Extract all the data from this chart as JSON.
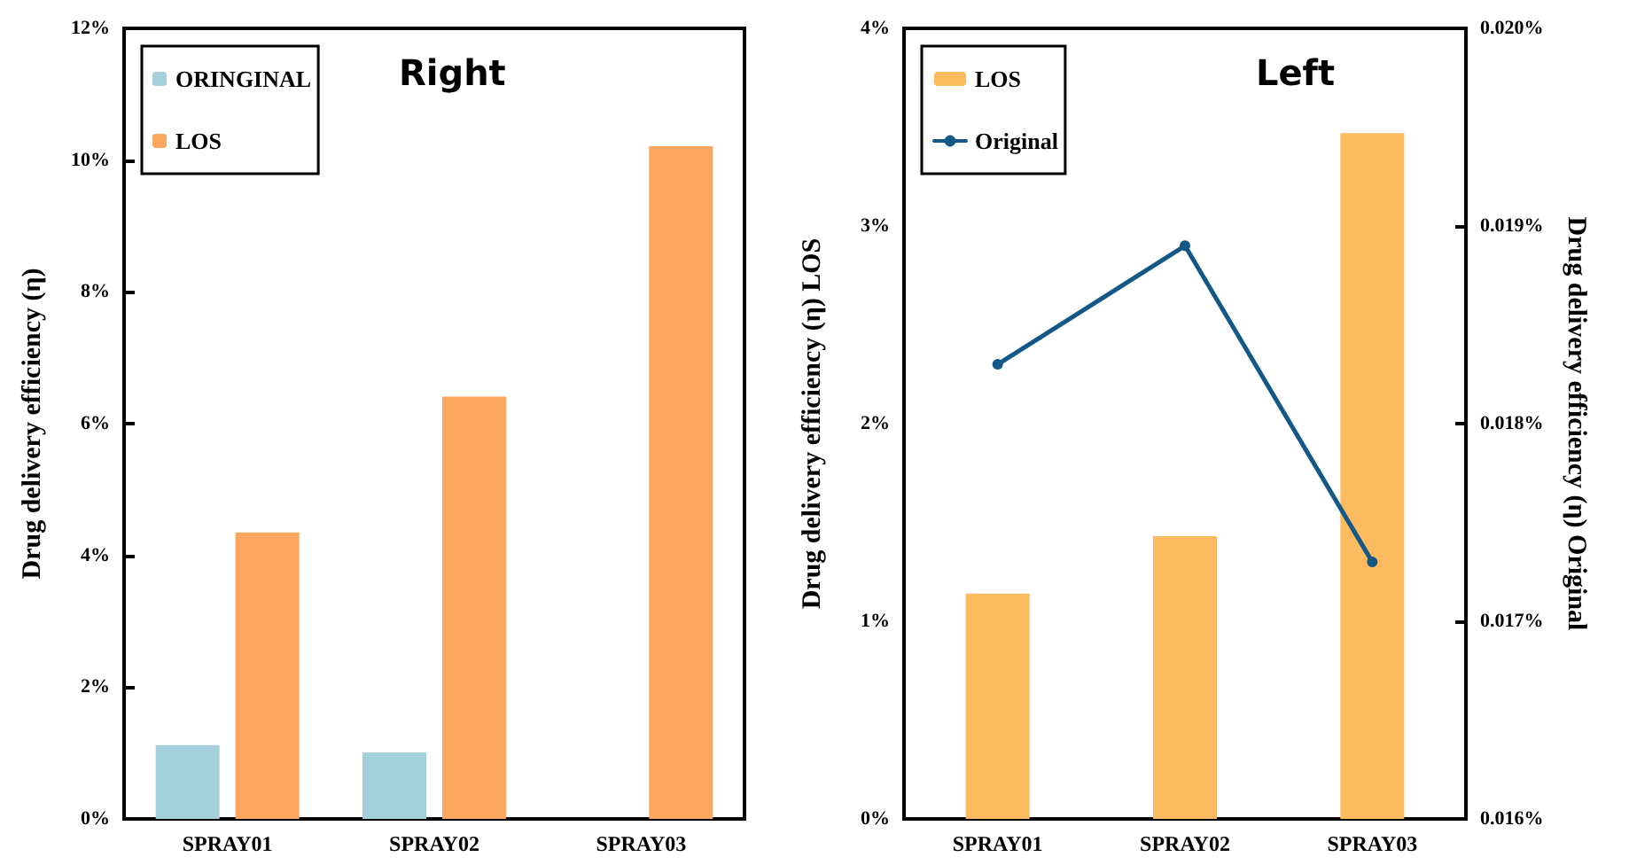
{
  "chart_data": [
    {
      "type": "bar",
      "title": "Right",
      "ylabel": "Drug delivery efficiency (η)",
      "categories": [
        "SPRAY01",
        "SPRAY02",
        "SPRAY03"
      ],
      "series": [
        {
          "name": "ORINGINAL",
          "color": "#a3d0da",
          "values": [
            1.12,
            1.01,
            null
          ]
        },
        {
          "name": "LOS",
          "color": "#fda65f",
          "values": [
            4.35,
            6.41,
            10.21
          ]
        }
      ],
      "ylim": [
        0,
        12
      ],
      "yticks": [
        {
          "value": 0,
          "label": "0%"
        },
        {
          "value": 2,
          "label": "2%"
        },
        {
          "value": 4,
          "label": "4%"
        },
        {
          "value": 6,
          "label": "6%"
        },
        {
          "value": 8,
          "label": "8%"
        },
        {
          "value": 10,
          "label": "10%"
        },
        {
          "value": 12,
          "label": "12%"
        }
      ],
      "grid": false,
      "legend": "top left"
    },
    {
      "type": "bar",
      "title": "Left",
      "ylabel": "Drug delivery efficiency (η) LOS",
      "y2label": "Drug delivery efficiency (η) Original",
      "categories": [
        "SPRAY01",
        "SPRAY02",
        "SPRAY03"
      ],
      "series": [
        {
          "name": "LOS",
          "color": "#fdbb5f",
          "values": [
            1.14,
            1.43,
            3.47
          ]
        },
        {
          "name": "Original",
          "type": "line",
          "axis": "y2",
          "color": "#135886",
          "values": [
            0.0183,
            0.0189,
            0.0173
          ]
        }
      ],
      "ylim": [
        0,
        4
      ],
      "yticks": [
        {
          "value": 0,
          "label": "0%"
        },
        {
          "value": 1,
          "label": "1%"
        },
        {
          "value": 2,
          "label": "2%"
        },
        {
          "value": 3,
          "label": "3%"
        },
        {
          "value": 4,
          "label": "4%"
        }
      ],
      "y2lim": [
        0.016,
        0.02
      ],
      "y2ticks": [
        {
          "value": 0.016,
          "label": "0.016%"
        },
        {
          "value": 0.017,
          "label": "0.017%"
        },
        {
          "value": 0.018,
          "label": "0.018%"
        },
        {
          "value": 0.019,
          "label": "0.019%"
        },
        {
          "value": 0.02,
          "label": "0.020%"
        }
      ],
      "grid": false,
      "legend": "top left",
      "marker": "circle",
      "line_style": "solid"
    }
  ]
}
